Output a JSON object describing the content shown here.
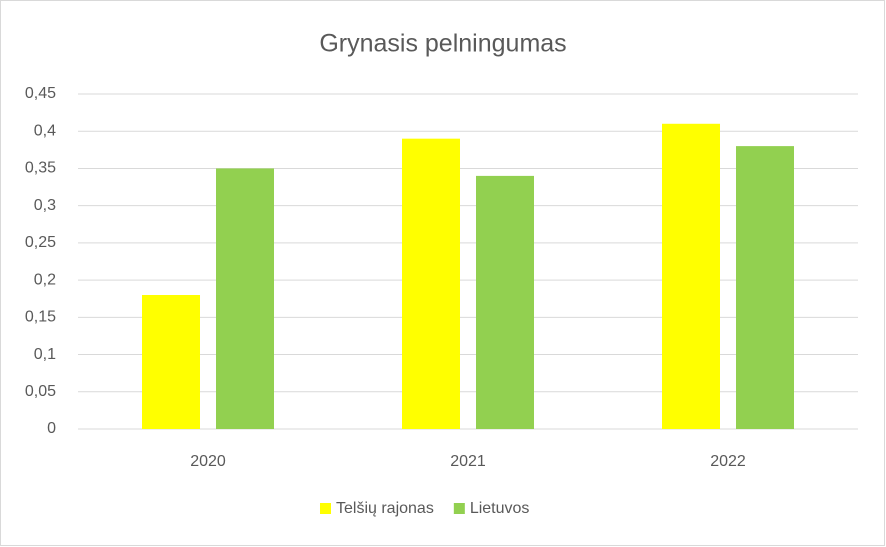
{
  "chart_data": {
    "type": "bar",
    "title": "Grynasis pelningumas",
    "categories": [
      "2020",
      "2021",
      "2022"
    ],
    "series": [
      {
        "name": "Telšių rajonas",
        "color": "#ffff00",
        "values": [
          0.18,
          0.39,
          0.41
        ]
      },
      {
        "name": "Lietuvos",
        "color": "#92d050",
        "values": [
          0.35,
          0.34,
          0.38
        ]
      }
    ],
    "ylim": [
      0,
      0.45
    ],
    "yticks": [
      0,
      {
        "value": 0.05,
        "label": "0,05"
      },
      {
        "value": 0.1,
        "label": "0,1"
      },
      {
        "value": 0.15,
        "label": "0,15"
      },
      {
        "value": 0.2,
        "label": "0,2"
      },
      {
        "value": 0.25,
        "label": "0,25"
      },
      {
        "value": 0.3,
        "label": "0,3"
      },
      {
        "value": 0.35,
        "label": "0,35"
      },
      {
        "value": 0.4,
        "label": "0,4"
      },
      {
        "value": 0.45,
        "label": "0,45"
      }
    ],
    "grid": true,
    "legend": "bottom"
  }
}
